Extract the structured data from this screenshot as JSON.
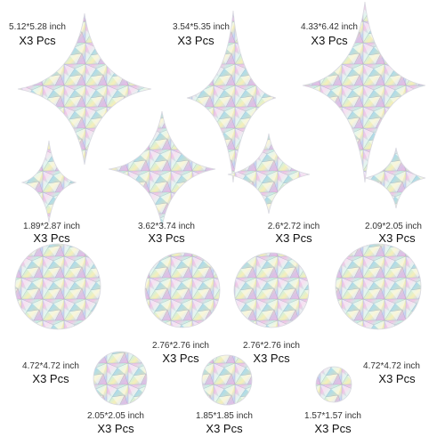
{
  "items": [
    {
      "size": "5.12*5.28 inch",
      "qty": "X3 Pcs"
    },
    {
      "size": "3.54*5.35 inch",
      "qty": "X3 Pcs"
    },
    {
      "size": "4.33*6.42 inch",
      "qty": "X3 Pcs"
    },
    {
      "size": "1.89*2.87 inch",
      "qty": "X3 Pcs"
    },
    {
      "size": "3.62*3.74 inch",
      "qty": "X3 Pcs"
    },
    {
      "size": "2.6*2.72 inch",
      "qty": "X3 Pcs"
    },
    {
      "size": "2.09*2.05 inch",
      "qty": "X3 Pcs"
    },
    {
      "size": "4.72*4.72 inch",
      "qty": "X3 Pcs"
    },
    {
      "size": "2.76*2.76 inch",
      "qty": "X3 Pcs"
    },
    {
      "size": "2.76*2.76 inch",
      "qty": "X3 Pcs"
    },
    {
      "size": "4.72*4.72 inch",
      "qty": "X3 Pcs"
    },
    {
      "size": "2.05*2.05 inch",
      "qty": "X3 Pcs"
    },
    {
      "size": "1.85*1.85 inch",
      "qty": "X3 Pcs"
    },
    {
      "size": "1.57*1.57 inch",
      "qty": "X3 Pcs"
    }
  ]
}
